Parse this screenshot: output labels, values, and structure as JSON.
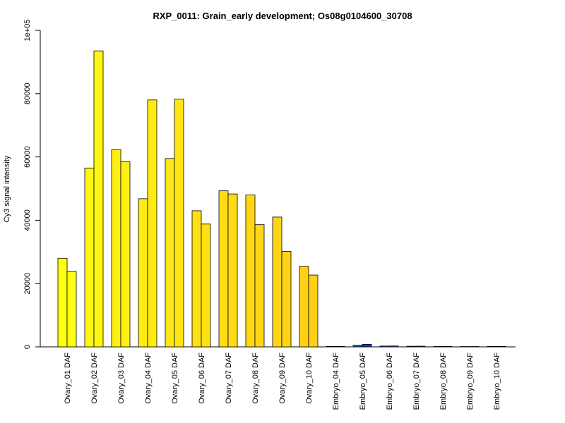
{
  "chart_data": {
    "type": "bar",
    "title": "RXP_0011: Grain_early development; Os08g0104600_30708",
    "xlabel": "",
    "ylabel": "Cy3 signal intensity",
    "ylim": [
      0,
      100000
    ],
    "yticks": [
      0,
      20000,
      40000,
      60000,
      80000,
      100000
    ],
    "ytick_labels": [
      "0",
      "20000",
      "40000",
      "60000",
      "80000",
      "1e+05"
    ],
    "grid": false,
    "legend": "none",
    "categories": [
      "Ovary_01 DAF",
      "Ovary_02 DAF",
      "Ovary_03 DAF",
      "Ovary_04 DAF",
      "Ovary_05 DAF",
      "Ovary_06 DAF",
      "Ovary_07 DAF",
      "Ovary_08 DAF",
      "Ovary_09 DAF",
      "Ovary_10 DAF",
      "Embryo_04 DAF",
      "Embryo_05 DAF",
      "Embryo_06 DAF",
      "Embryo_07 DAF",
      "Embryo_08 DAF",
      "Embryo_09 DAF",
      "Embryo_10 DAF"
    ],
    "series": [
      {
        "values": [
          28000,
          56500,
          62300,
          46800,
          59500,
          43000,
          49300,
          48000,
          41000,
          25500,
          150,
          500,
          250,
          200,
          120,
          100,
          140
        ]
      },
      {
        "values": [
          23800,
          93500,
          58500,
          78000,
          78300,
          38800,
          48300,
          38600,
          30200,
          22700,
          160,
          800,
          280,
          220,
          130,
          110,
          150
        ]
      }
    ],
    "bar_colors": [
      [
        "#ffff14",
        "#ffff14"
      ],
      [
        "#fff614",
        "#fff614"
      ],
      [
        "#fff014",
        "#fff014"
      ],
      [
        "#ffeb14",
        "#ffeb14"
      ],
      [
        "#ffe614",
        "#ffe614"
      ],
      [
        "#ffe014",
        "#ffe014"
      ],
      [
        "#ffdc14",
        "#ffdc14"
      ],
      [
        "#ffd714",
        "#ffd714"
      ],
      [
        "#ffd414",
        "#ffd414"
      ],
      [
        "#ffd014",
        "#ffd014"
      ],
      [
        "#3355aa",
        "#3355aa"
      ],
      [
        "#2255bb",
        "#0044cc"
      ],
      [
        "#3355aa",
        "#3355aa"
      ],
      [
        "#3355aa",
        "#3355aa"
      ],
      [
        "#3355aa",
        "#3355aa"
      ],
      [
        "#3355aa",
        "#3355aa"
      ],
      [
        "#3355aa",
        "#3355aa"
      ]
    ]
  }
}
